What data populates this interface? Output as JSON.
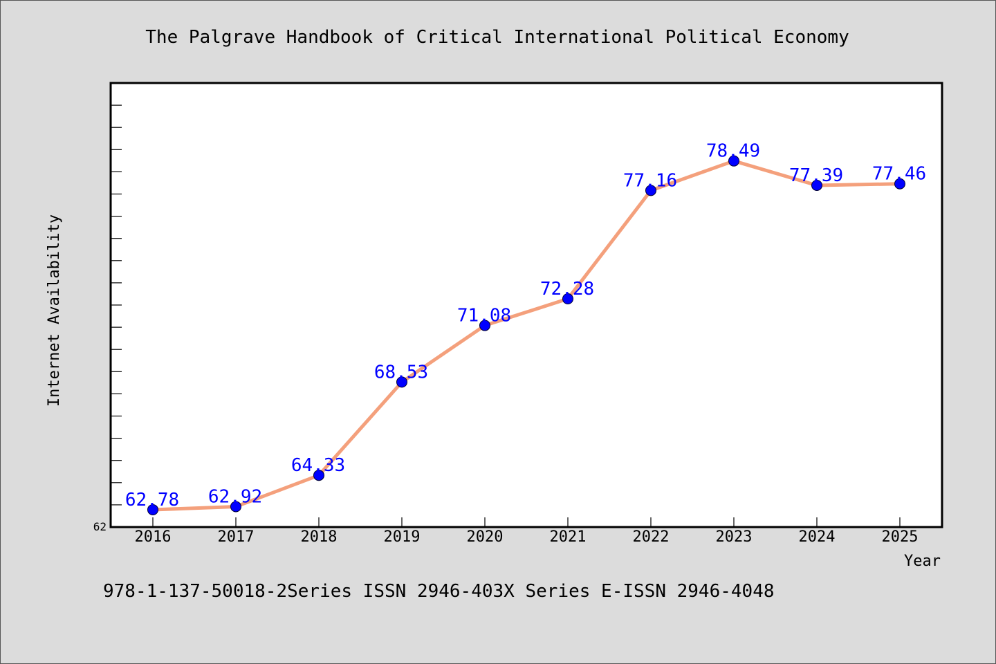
{
  "title": "The Palgrave Handbook of Critical International Political Economy",
  "footer": "978-1-137-50018-2Series ISSN 2946-403X Series E-ISSN 2946-4048",
  "colors": {
    "background": "#dcdcdc",
    "plot_background": "#ffffff",
    "line": "#f4a07c",
    "marker": "#0000ff",
    "data_label": "#0000ff"
  },
  "chart_data": {
    "type": "line",
    "title": "The Palgrave Handbook of Critical International Political Economy",
    "xlabel": "Year",
    "ylabel": "Internet Availability",
    "x": [
      "2016",
      "2017",
      "2018",
      "2019",
      "2020",
      "2021",
      "2022",
      "2023",
      "2024",
      "2025"
    ],
    "series": [
      {
        "values": [
          62.78,
          62.92,
          64.33,
          68.53,
          71.08,
          72.28,
          77.16,
          78.49,
          77.39,
          77.46
        ],
        "labels": [
          "62.78",
          "62.92",
          "64.33",
          "68.53",
          "71.08",
          "72.28",
          "77.16",
          "78.49",
          "77.39",
          "77.46"
        ]
      }
    ],
    "ylim": [
      62,
      82
    ],
    "yticks_labeled": [
      "62"
    ],
    "grid": false,
    "legend": "none"
  }
}
